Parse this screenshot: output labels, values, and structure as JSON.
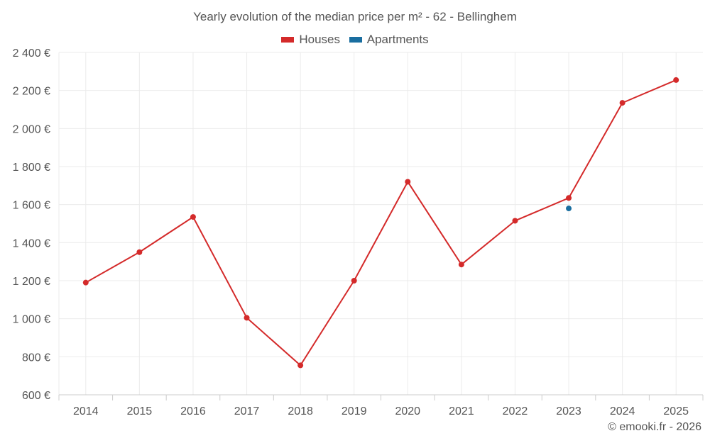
{
  "chart_data": {
    "type": "line",
    "title": "Yearly evolution of the median price per m² - 62 - Bellinghem",
    "categories": [
      "2014",
      "2015",
      "2016",
      "2017",
      "2018",
      "2019",
      "2020",
      "2021",
      "2022",
      "2023",
      "2024",
      "2025"
    ],
    "series": [
      {
        "name": "Houses",
        "color": "#d42a2a",
        "values": [
          1190,
          1350,
          1535,
          1005,
          755,
          1200,
          1720,
          1285,
          1515,
          1635,
          2135,
          2255
        ]
      },
      {
        "name": "Apartments",
        "color": "#1a6ea0",
        "values": [
          null,
          null,
          null,
          null,
          null,
          null,
          null,
          null,
          null,
          1580,
          null,
          null
        ]
      }
    ],
    "ylim": [
      600,
      2400
    ],
    "yticks": [
      600,
      800,
      1000,
      1200,
      1400,
      1600,
      1800,
      2000,
      2200,
      2400
    ],
    "ytick_labels": [
      "600 €",
      "800 €",
      "1 000 €",
      "1 200 €",
      "1 400 €",
      "1 600 €",
      "1 800 €",
      "2 000 €",
      "2 200 €",
      "2 400 €"
    ],
    "grid": true,
    "legend_position": "top-center",
    "xlabel": "",
    "ylabel": ""
  },
  "credit": "© emooki.fr - 2026"
}
